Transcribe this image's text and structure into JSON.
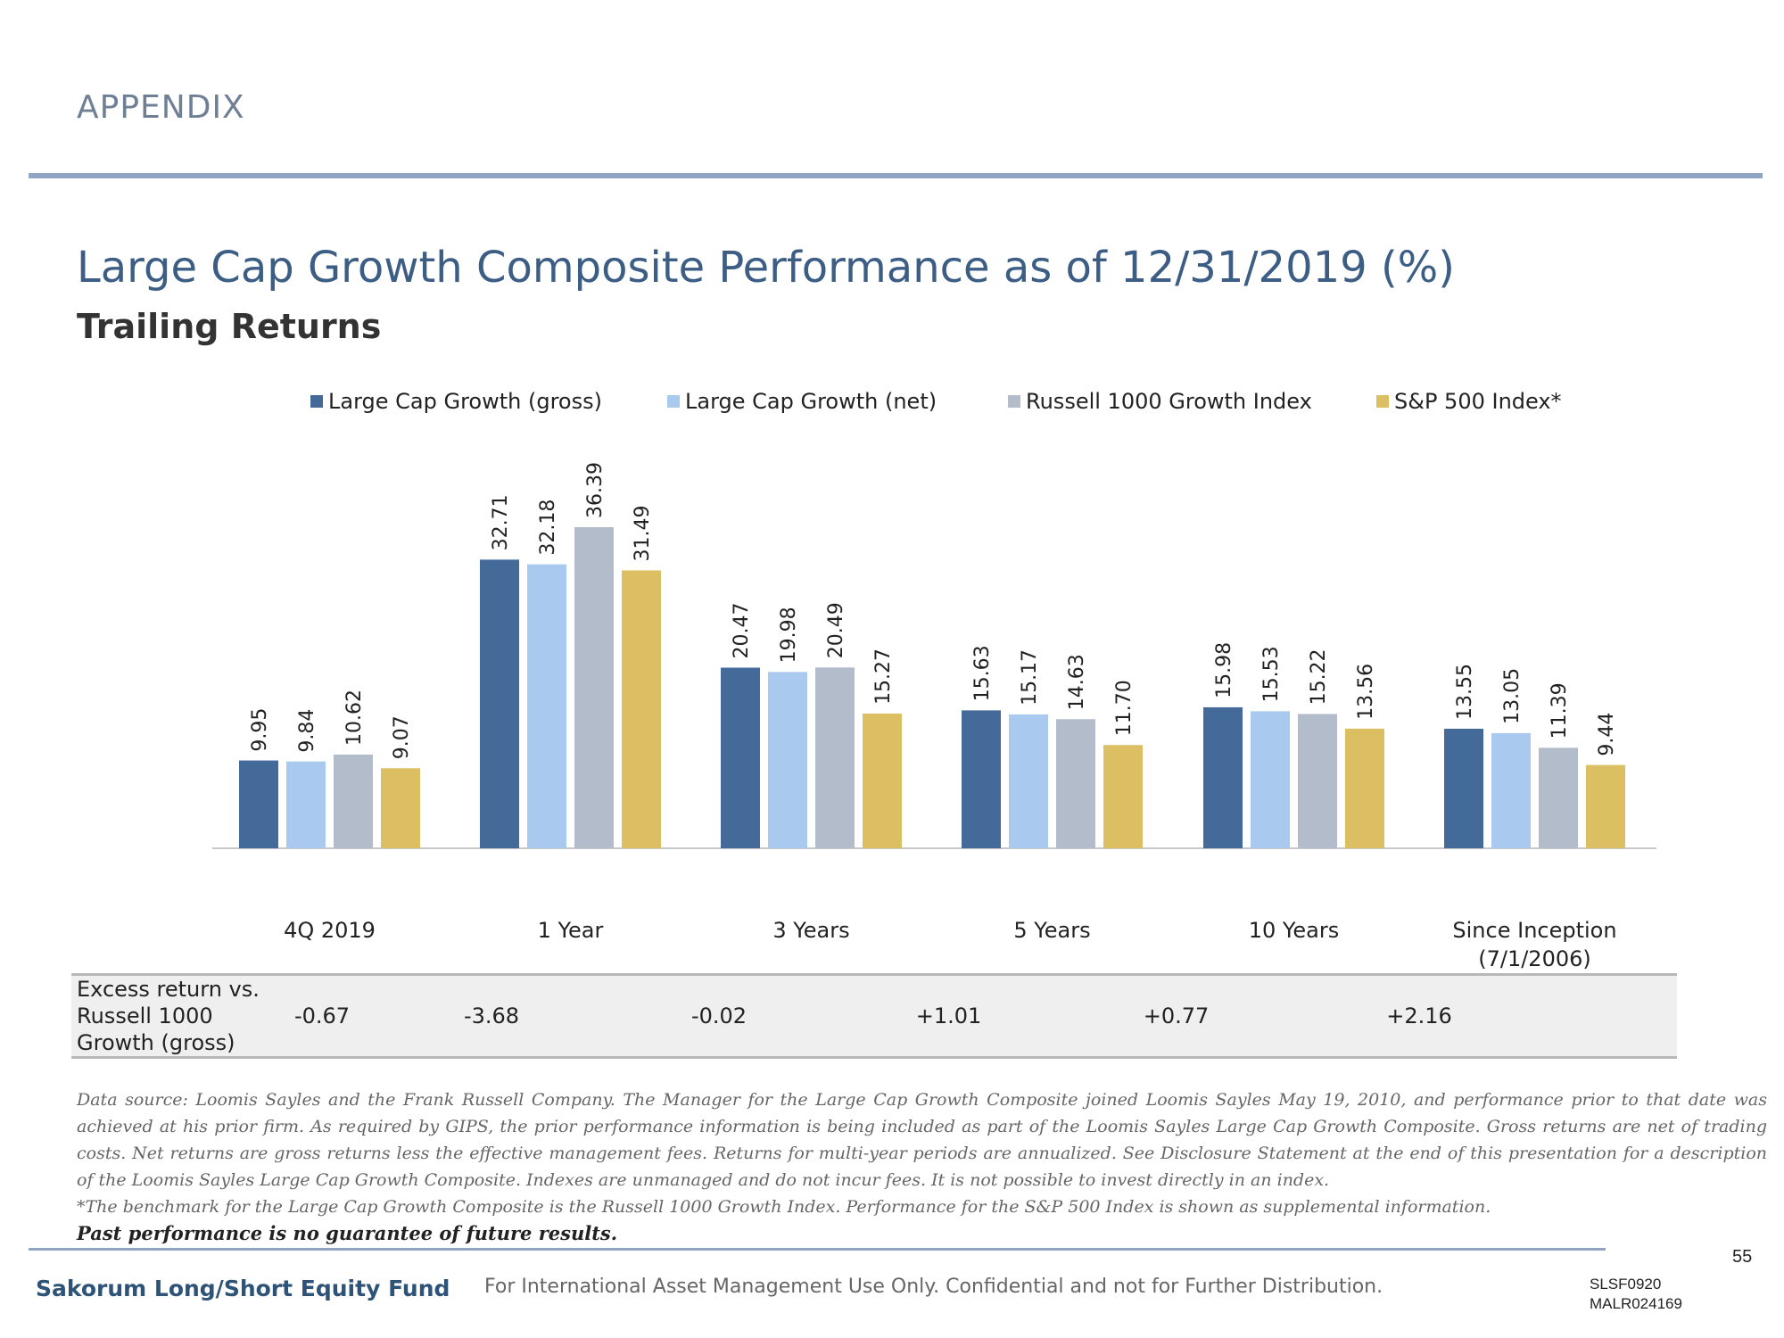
{
  "header": {
    "section": "APPENDIX",
    "title": "Large Cap Growth Composite Performance as of 12/31/2019 (%)",
    "subtitle": "Trailing Returns"
  },
  "colors": {
    "gross": "#436a98",
    "net": "#a9caee",
    "russell": "#b2bccb",
    "sp500": "#dcbf62",
    "title": "#3c5d84",
    "rule": "#8fa5c3"
  },
  "chart_data": {
    "type": "bar",
    "categories": [
      "4Q 2019",
      "1 Year",
      "3 Years",
      "5 Years",
      "10 Years",
      "Since Inception\n(7/1/2006)"
    ],
    "series": [
      {
        "name": "Large Cap Growth (gross)",
        "values": [
          9.95,
          32.71,
          20.47,
          15.63,
          15.98,
          13.55
        ]
      },
      {
        "name": "Large Cap Growth (net)",
        "values": [
          9.84,
          32.18,
          19.98,
          15.17,
          15.53,
          13.05
        ]
      },
      {
        "name": "Russell 1000 Growth Index",
        "values": [
          10.62,
          36.39,
          20.49,
          14.63,
          15.22,
          11.39
        ]
      },
      {
        "name": "S&P 500 Index*",
        "values": [
          9.07,
          31.49,
          15.27,
          11.7,
          13.56,
          9.44
        ]
      }
    ],
    "value_labels": [
      [
        "9.95",
        "32.71",
        "20.47",
        "15.63",
        "15.98",
        "13.55"
      ],
      [
        "9.84",
        "32.18",
        "19.98",
        "15.17",
        "15.53",
        "13.05"
      ],
      [
        "10.62",
        "36.39",
        "20.49",
        "14.63",
        "15.22",
        "11.39"
      ],
      [
        "9.07",
        "31.49",
        "15.27",
        "11.70",
        "13.56",
        "9.44"
      ]
    ],
    "ylim": [
      0,
      36.39
    ],
    "legend_position": "top",
    "grid": false,
    "title": "",
    "xlabel": "",
    "ylabel": ""
  },
  "excess_return": {
    "label": "Excess return vs. Russell 1000 Growth (gross)",
    "values": [
      "-0.67",
      "-3.68",
      "-0.02",
      "+1.01",
      "+0.77",
      "+2.16"
    ]
  },
  "notes": {
    "data_source": "Data source: Loomis Sayles and the Frank Russell Company. The Manager for the Large Cap Growth Composite joined Loomis Sayles May 19, 2010, and performance prior to that date was achieved at his prior firm. As required by GIPS, the prior performance information is being included as part of the Loomis Sayles Large Cap Growth Composite. Gross returns are net of trading costs. Net returns are gross returns less the effective management fees. Returns for multi-year periods are annualized. See Disclosure Statement at the end of this presentation for a description of the Loomis Sayles Large Cap Growth Composite. Indexes are unmanaged and do not incur fees. It is not possible to invest directly in an index.",
    "benchmark": "*The benchmark for the Large Cap Growth Composite is the Russell 1000 Growth Index. Performance for the S&P 500 Index is shown as supplemental information.",
    "past_performance": "Past performance is no guarantee of future results."
  },
  "footer": {
    "page_number": "55",
    "fund_name": "Sakorum Long/Short Equity Fund",
    "confidential": "For International Asset Management Use Only. Confidential and not for Further Distribution.",
    "code_1": "SLSF0920",
    "code_2": "MALR024169"
  }
}
